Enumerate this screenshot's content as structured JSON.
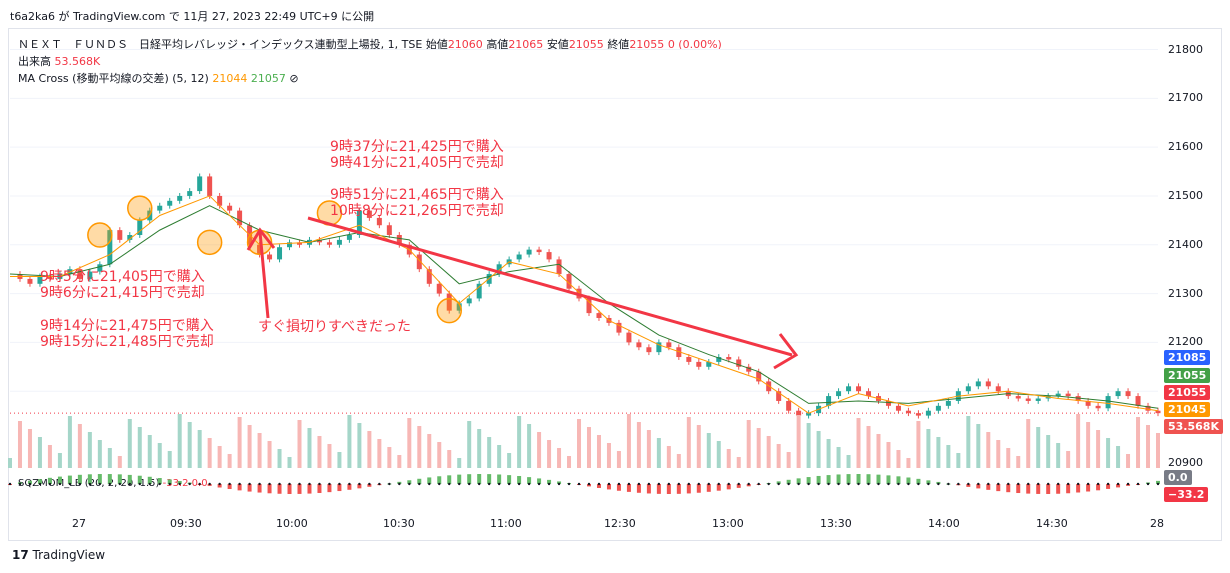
{
  "header": {
    "publish_line": "t6a2ka6 が TradingView.com で 11月 27, 2023 22:49 UTC+9 に公開"
  },
  "legend": {
    "symbol": "ＮＥＸＴ　ＦＵＮＤＳ　日経平均レバレッジ・インデックス連動型上場投, 1, TSE",
    "open_label": "始値",
    "open": "21060",
    "high_label": "高値",
    "high": "21065",
    "low_label": "安値",
    "low": "21055",
    "close_label": "終値",
    "close": "21055",
    "change": "0 (0.00%)",
    "volume_label": "出来高",
    "volume": "53.568K",
    "ma_label": "MA Cross (移動平均線の交差) (5, 12)",
    "ma_fast": "21044",
    "ma_slow": "21057",
    "ma_icon": "⊘",
    "sqz_label": "SQZMOM_LB (20, 2, 20, 1.5)",
    "sqz_values": "-33.2 0.0"
  },
  "annotations": [
    {
      "lines": [
        "9時37分に21,425円で購入",
        "9時41分に21,405円で売却"
      ]
    },
    {
      "lines": [
        "9時51分に21,465円で購入",
        "10時8分に21,265円で売却"
      ]
    },
    {
      "lines": [
        "9時5分に21,405円で購入",
        "9時6分に21,415円で売却"
      ]
    },
    {
      "lines": [
        "9時14分に21,475円で購入",
        "9時15分に21,485円で売却"
      ]
    },
    {
      "lines": [
        "すぐ損切りすべきだった"
      ]
    }
  ],
  "price_badges": [
    {
      "value": "21085",
      "color": "#2962ff"
    },
    {
      "value": "21055",
      "color": "#43a047"
    },
    {
      "value": "21055",
      "color": "#f23645"
    },
    {
      "value": "21045",
      "color": "#ff9800"
    },
    {
      "value": "53.568K",
      "color": "#ef5350"
    }
  ],
  "sqz_badges": [
    {
      "value": "0.0",
      "color": "#787b86"
    },
    {
      "value": "−33.2",
      "color": "#f23645"
    }
  ],
  "footer": {
    "brand": "TradingView"
  },
  "chart_data": {
    "type": "line",
    "title": "ＮＥＸＴ　ＦＵＮＤＳ　日経平均レバレッジ・インデックス連動型上場投, 1, TSE",
    "x_ticks": [
      "27",
      "09:30",
      "10:00",
      "10:30",
      "11:00",
      "12:30",
      "13:00",
      "13:30",
      "14:00",
      "14:30",
      "28"
    ],
    "y_ticks": [
      21800,
      21700,
      21600,
      21500,
      21400,
      21300,
      21200,
      20900
    ],
    "ylim": [
      21000,
      21840
    ],
    "series": [
      {
        "name": "price",
        "x": [
          0,
          3,
          6,
          9,
          12,
          15,
          18,
          21,
          24,
          27,
          30,
          33,
          36,
          39,
          42,
          45,
          48,
          51,
          54,
          57,
          60,
          63,
          66,
          69,
          72,
          75,
          78,
          81,
          84,
          87,
          90,
          93,
          96,
          99,
          102,
          105,
          108,
          111,
          114,
          117,
          120,
          123,
          126,
          129,
          132,
          135,
          138,
          141,
          144,
          147,
          150,
          153,
          156,
          159,
          162,
          165,
          168,
          171,
          174,
          177,
          180,
          183,
          186,
          189,
          192,
          195,
          198,
          201,
          204,
          207,
          210,
          213,
          216,
          219,
          222,
          225,
          228,
          231,
          234,
          237,
          240,
          243,
          246,
          249,
          252,
          255,
          258,
          261,
          264,
          267,
          270,
          273,
          276,
          279,
          282,
          285,
          288,
          291,
          294,
          297,
          300,
          303,
          306,
          309,
          312,
          315,
          318,
          321,
          324,
          327,
          330,
          333,
          336,
          339,
          342,
          345
        ],
        "y": [
          21340,
          21330,
          21320,
          21335,
          21330,
          21340,
          21350,
          21330,
          21345,
          21360,
          21430,
          21410,
          21420,
          21450,
          21470,
          21480,
          21490,
          21500,
          21510,
          21540,
          21500,
          21480,
          21470,
          21440,
          21400,
          21380,
          21370,
          21395,
          21405,
          21400,
          21410,
          21405,
          21400,
          21410,
          21420,
          21470,
          21455,
          21440,
          21420,
          21400,
          21380,
          21350,
          21320,
          21300,
          21265,
          21280,
          21290,
          21320,
          21340,
          21360,
          21370,
          21380,
          21390,
          21385,
          21370,
          21340,
          21310,
          21290,
          21260,
          21250,
          21240,
          21220,
          21200,
          21190,
          21180,
          21200,
          21190,
          21170,
          21160,
          21150,
          21160,
          21170,
          21165,
          21150,
          21140,
          21120,
          21100,
          21080,
          21060,
          21050,
          21055,
          21070,
          21090,
          21100,
          21110,
          21100,
          21090,
          21080,
          21070,
          21060,
          21055,
          21050,
          21060,
          21070,
          21080,
          21100,
          21110,
          21120,
          21110,
          21100,
          21090,
          21085,
          21080,
          21085,
          21090,
          21095,
          21090,
          21080,
          21070,
          21065,
          21090,
          21100,
          21090,
          21070,
          21060,
          21055
        ]
      },
      {
        "name": "MA 5",
        "x": [
          0,
          15,
          30,
          45,
          60,
          75,
          90,
          105,
          120,
          135,
          150,
          165,
          180,
          195,
          210,
          225,
          240,
          255,
          270,
          285,
          300,
          315,
          330,
          345
        ],
        "y": [
          21335,
          21335,
          21380,
          21460,
          21500,
          21400,
          21405,
          21440,
          21390,
          21280,
          21365,
          21340,
          21245,
          21195,
          21160,
          21125,
          21055,
          21095,
          21070,
          21090,
          21100,
          21085,
          21075,
          21060
        ]
      },
      {
        "name": "MA 12",
        "x": [
          0,
          15,
          30,
          45,
          60,
          75,
          90,
          105,
          120,
          135,
          150,
          165,
          180,
          195,
          210,
          225,
          240,
          255,
          270,
          285,
          300,
          315,
          330,
          345
        ],
        "y": [
          21340,
          21335,
          21360,
          21430,
          21480,
          21430,
          21405,
          21425,
          21410,
          21320,
          21345,
          21360,
          21280,
          21215,
          21175,
          21140,
          21075,
          21080,
          21075,
          21085,
          21095,
          21090,
          21080,
          21065
        ]
      }
    ]
  }
}
